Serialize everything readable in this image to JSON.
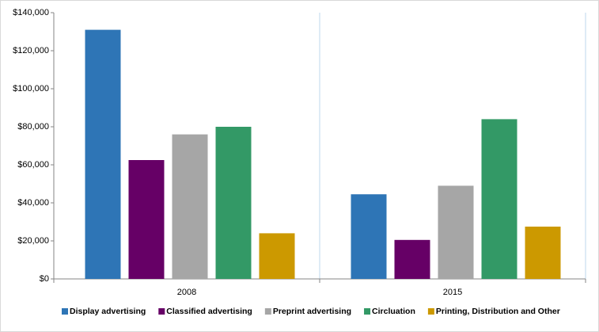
{
  "chart_data": {
    "type": "bar",
    "categories": [
      "2008",
      "2015"
    ],
    "series": [
      {
        "name": "Display advertising",
        "color": "#2e75b6",
        "values": [
          131000,
          44500
        ]
      },
      {
        "name": "Classified advertising",
        "color": "#660066",
        "values": [
          62500,
          20500
        ]
      },
      {
        "name": "Preprint advertising",
        "color": "#a6a6a6",
        "values": [
          76000,
          49000
        ]
      },
      {
        "name": "Circluation",
        "color": "#339966",
        "values": [
          80000,
          84000
        ]
      },
      {
        "name": "Printing, Distribution and Other",
        "color": "#cc9900",
        "values": [
          24000,
          27500
        ]
      }
    ],
    "ylim": [
      0,
      140000
    ],
    "yticks": [
      {
        "value": 0,
        "label": "$0"
      },
      {
        "value": 20000,
        "label": "$20,000"
      },
      {
        "value": 40000,
        "label": "$40,000"
      },
      {
        "value": 60000,
        "label": "$60,000"
      },
      {
        "value": 80000,
        "label": "$80,000"
      },
      {
        "value": 100000,
        "label": "$100,000"
      },
      {
        "value": 120000,
        "label": "$120,000"
      },
      {
        "value": 140000,
        "label": "$140,000"
      }
    ],
    "legend": "bottom"
  }
}
